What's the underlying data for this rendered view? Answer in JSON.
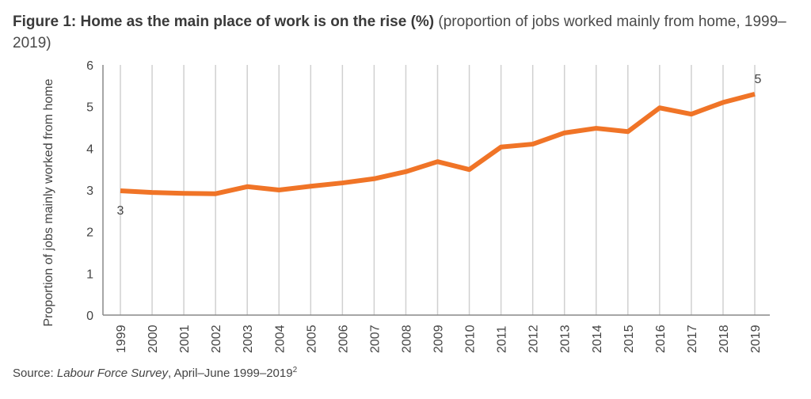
{
  "title": {
    "bold": "Figure 1: Home as the main place of work is on the rise (%)",
    "normal": " (proportion of jobs worked mainly from home, 1999–2019)"
  },
  "source": {
    "prefix": "Source: ",
    "name": "Labour Force Survey",
    "suffix": ", April–June 1999–2019",
    "footnote": "2"
  },
  "colors": {
    "line": "#f07427",
    "grid": "#d0d0d0",
    "axis": "#888888"
  },
  "chart_data": {
    "type": "line",
    "title": "Figure 1: Home as the main place of work is on the rise (%)",
    "xlabel": "",
    "ylabel": "Proportion of jobs mainly worked from home",
    "ylim": [
      0,
      6
    ],
    "yticks": [
      "0",
      "1",
      "2",
      "3",
      "4",
      "5",
      "6"
    ],
    "x": [
      "1999",
      "2000",
      "2001",
      "2002",
      "2003",
      "2004",
      "2005",
      "2006",
      "2007",
      "2008",
      "2009",
      "2010",
      "2011",
      "2012",
      "2013",
      "2014",
      "2015",
      "2016",
      "2017",
      "2018",
      "2019"
    ],
    "series": [
      {
        "name": "Proportion of jobs worked mainly from home",
        "values": [
          2.98,
          2.94,
          2.92,
          2.91,
          3.08,
          3.0,
          3.09,
          3.17,
          3.27,
          3.44,
          3.68,
          3.49,
          4.03,
          4.1,
          4.37,
          4.48,
          4.4,
          4.97,
          4.82,
          5.1,
          5.3
        ]
      }
    ],
    "annotations": [
      {
        "x": "1999",
        "text": "3"
      },
      {
        "x": "2019",
        "text": "5"
      }
    ],
    "grid": "vertical"
  }
}
